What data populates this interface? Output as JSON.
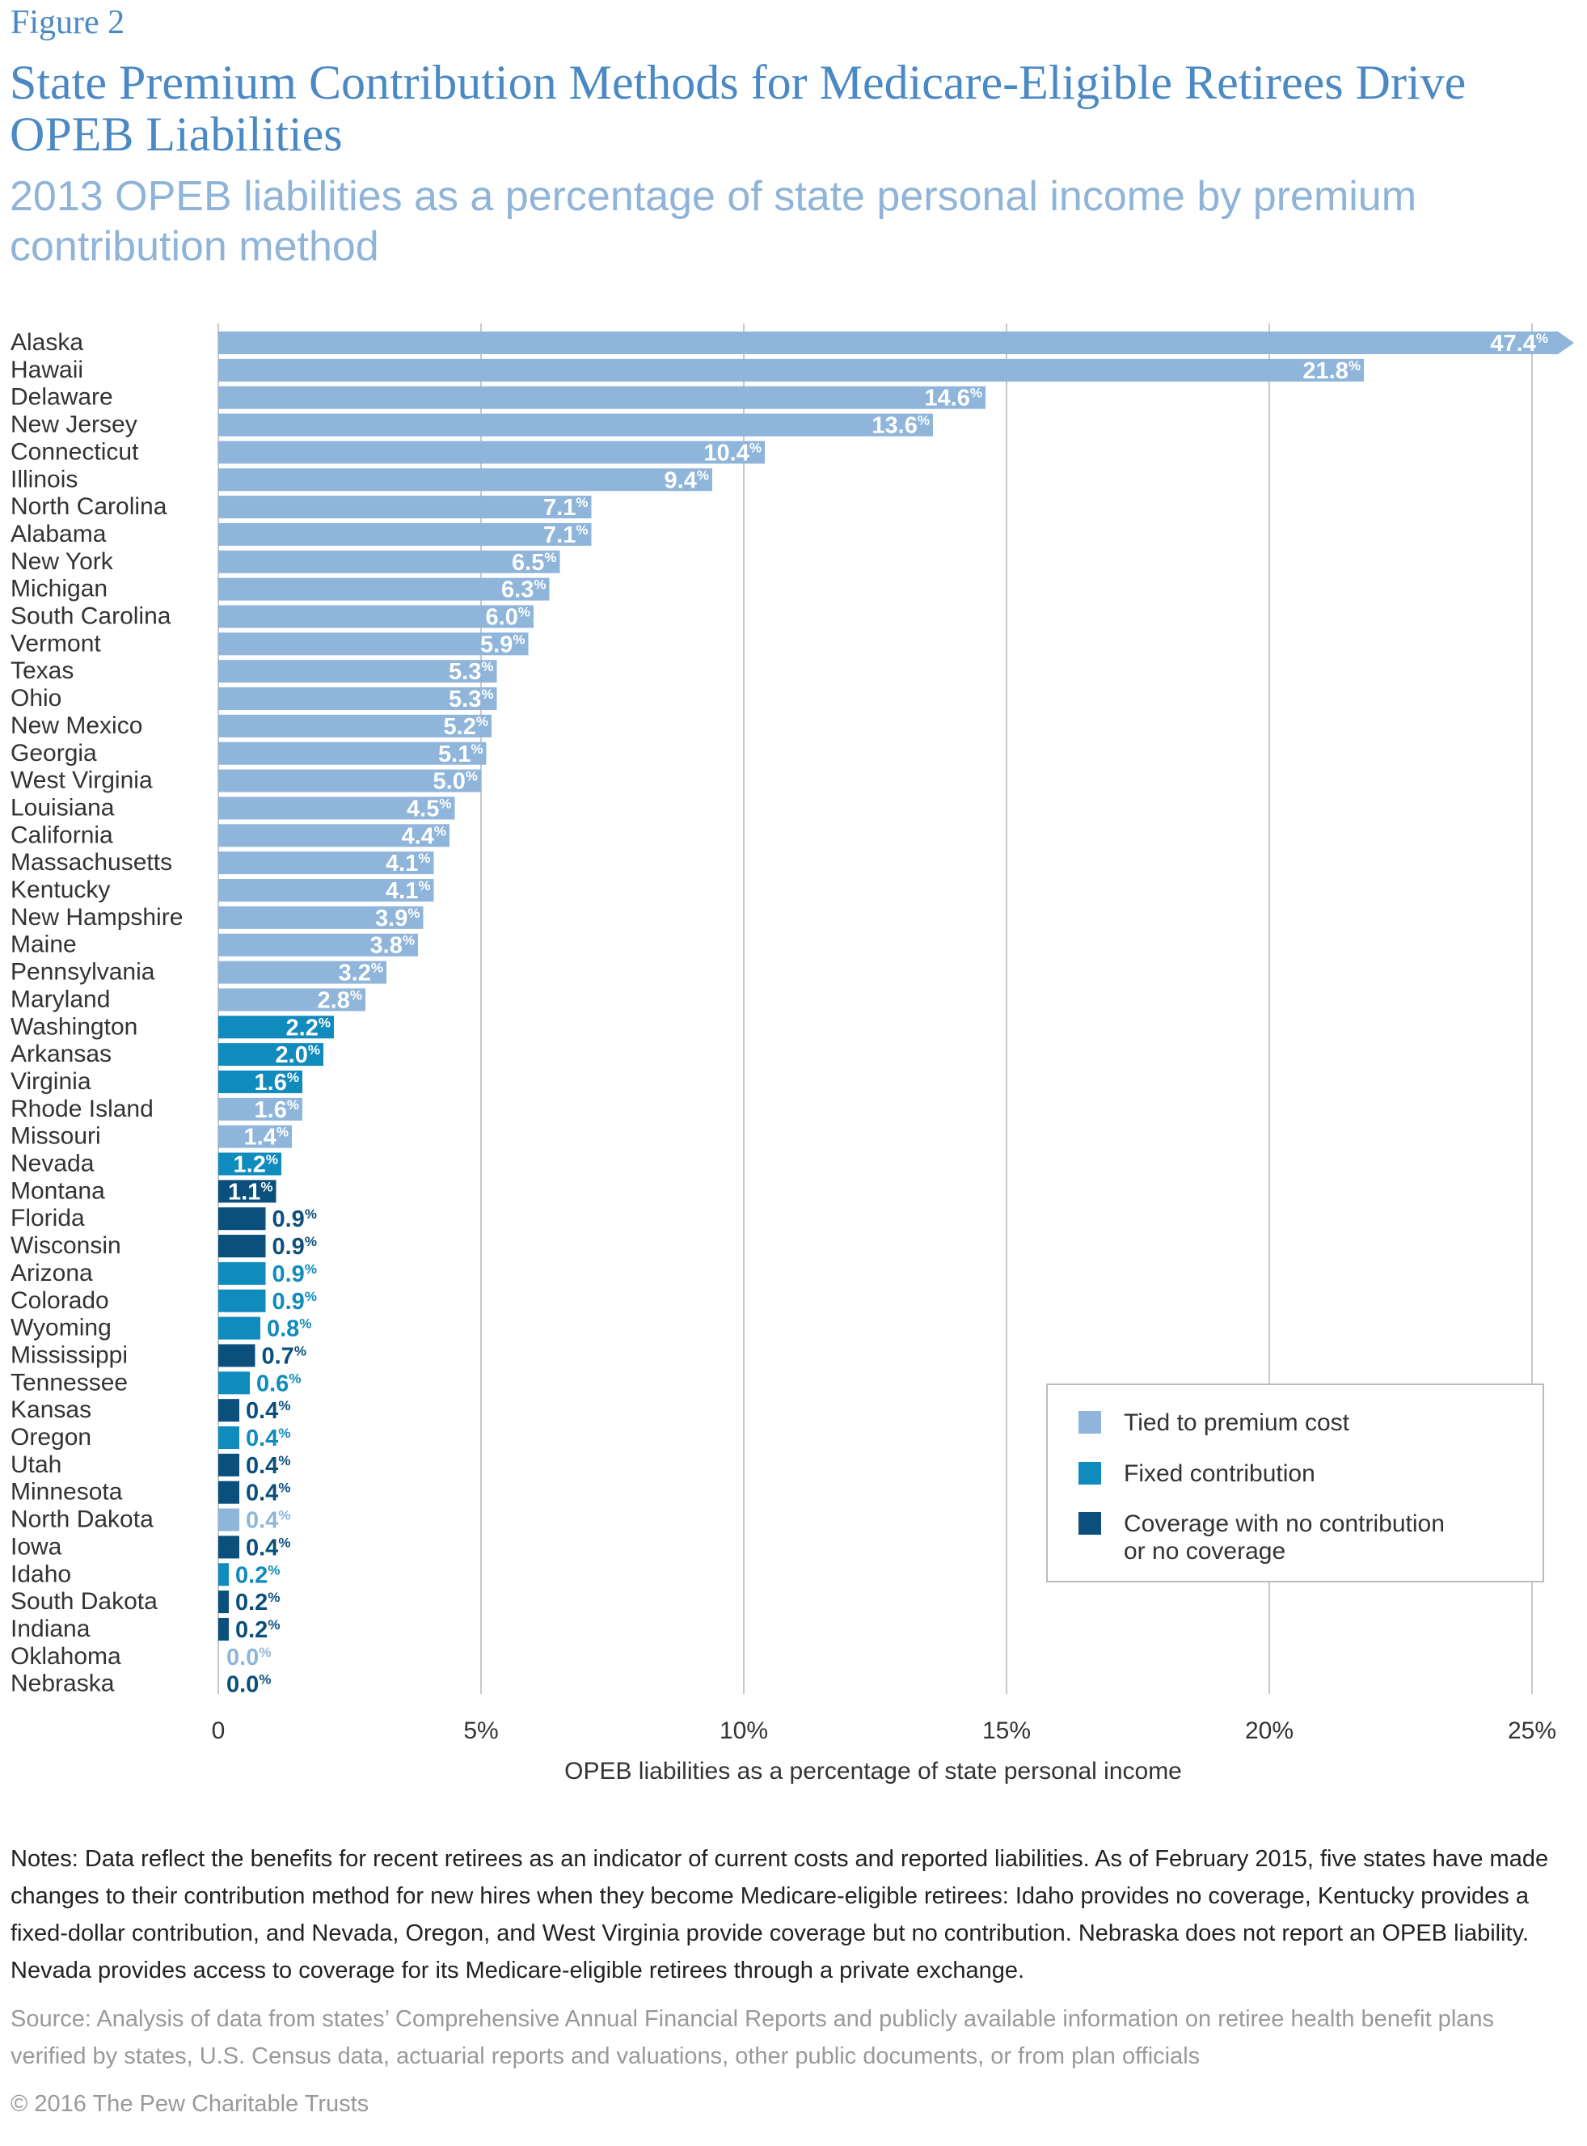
{
  "header": {
    "figure_label": "Figure 2",
    "title": "State Premium Contribution Methods for Medicare-Eligible Retirees Drive OPEB Liabilities",
    "subtitle": "2013 OPEB liabilities as a percentage of state personal income by premium contribution method"
  },
  "colors": {
    "tied": "#8fb5da",
    "fixed": "#0f8bbd",
    "none": "#0b4f7c",
    "grid": "#c8c8c8",
    "label_text": "#333333",
    "value_inside": "#ffffff"
  },
  "legend": {
    "items": [
      {
        "key": "tied",
        "label": "Tied to premium cost"
      },
      {
        "key": "fixed",
        "label": "Fixed contribution"
      },
      {
        "key": "none",
        "label": "Coverage with no contribution",
        "label2": "or no coverage"
      }
    ]
  },
  "chart_data": {
    "type": "bar",
    "orientation": "horizontal",
    "xlabel": "OPEB liabilities as a percentage of state personal income",
    "xlim": [
      0,
      25
    ],
    "x_ticks": [
      0,
      5,
      10,
      15,
      20,
      25
    ],
    "x_tick_labels": [
      "0",
      "5%",
      "10%",
      "15%",
      "20%",
      "25%"
    ],
    "grid": true,
    "value_suffix": "%",
    "truncated_bar_note": "Alaska bar exceeds axis (arrow)",
    "legend_position": "bottom-right",
    "categories": [
      "Alaska",
      "Hawaii",
      "Delaware",
      "New Jersey",
      "Connecticut",
      "Illinois",
      "North Carolina",
      "Alabama",
      "New York",
      "Michigan",
      "South Carolina",
      "Vermont",
      "Texas",
      "Ohio",
      "New Mexico",
      "Georgia",
      "West Virginia",
      "Louisiana",
      "California",
      "Massachusetts",
      "Kentucky",
      "New Hampshire",
      "Maine",
      "Pennsylvania",
      "Maryland",
      "Washington",
      "Arkansas",
      "Virginia",
      "Rhode Island",
      "Missouri",
      "Nevada",
      "Montana",
      "Florida",
      "Wisconsin",
      "Arizona",
      "Colorado",
      "Wyoming",
      "Mississippi",
      "Tennessee",
      "Kansas",
      "Oregon",
      "Utah",
      "Minnesota",
      "North Dakota",
      "Iowa",
      "Idaho",
      "South Dakota",
      "Indiana",
      "Oklahoma",
      "Nebraska"
    ],
    "values": [
      47.4,
      21.8,
      14.6,
      13.6,
      10.4,
      9.4,
      7.1,
      7.1,
      6.5,
      6.3,
      6.0,
      5.9,
      5.3,
      5.3,
      5.2,
      5.1,
      5.0,
      4.5,
      4.4,
      4.1,
      4.1,
      3.9,
      3.8,
      3.2,
      2.8,
      2.2,
      2.0,
      1.6,
      1.6,
      1.4,
      1.2,
      1.1,
      0.9,
      0.9,
      0.9,
      0.9,
      0.8,
      0.7,
      0.6,
      0.4,
      0.4,
      0.4,
      0.4,
      0.4,
      0.4,
      0.2,
      0.2,
      0.2,
      0.0,
      0.0
    ],
    "value_labels": [
      "47.4",
      "21.8",
      "14.6",
      "13.6",
      "10.4",
      "9.4",
      "7.1",
      "7.1",
      "6.5",
      "6.3",
      "6.0",
      "5.9",
      "5.3",
      "5.3",
      "5.2",
      "5.1",
      "5.0",
      "4.5",
      "4.4",
      "4.1",
      "4.1",
      "3.9",
      "3.8",
      "3.2",
      "2.8",
      "2.2",
      "2.0",
      "1.6",
      "1.6",
      "1.4",
      "1.2",
      "1.1",
      "0.9",
      "0.9",
      "0.9",
      "0.9",
      "0.8",
      "0.7",
      "0.6",
      "0.4",
      "0.4",
      "0.4",
      "0.4",
      "0.4",
      "0.4",
      "0.2",
      "0.2",
      "0.2",
      "0.0",
      "0.0"
    ],
    "method": [
      "tied",
      "tied",
      "tied",
      "tied",
      "tied",
      "tied",
      "tied",
      "tied",
      "tied",
      "tied",
      "tied",
      "tied",
      "tied",
      "tied",
      "tied",
      "tied",
      "tied",
      "tied",
      "tied",
      "tied",
      "tied",
      "tied",
      "tied",
      "tied",
      "tied",
      "fixed",
      "fixed",
      "fixed",
      "tied",
      "tied",
      "fixed",
      "none",
      "none",
      "none",
      "fixed",
      "fixed",
      "fixed",
      "none",
      "fixed",
      "none",
      "fixed",
      "none",
      "none",
      "tied",
      "none",
      "fixed",
      "none",
      "none",
      "tied",
      "none"
    ]
  },
  "footer": {
    "notes": "Notes: Data reflect the benefits for recent retirees as an indicator of current costs and reported liabilities. As of February 2015, five states have made changes to their contribution method for new hires when they become Medicare-eligible retirees: Idaho provides no coverage, Kentucky provides a fixed-dollar contribution, and Nevada, Oregon, and West Virginia provide coverage but no contribution. Nebraska does not report an OPEB liability. Nevada provides access to coverage for its Medicare-eligible retirees through a private exchange.",
    "source": "Source: Analysis of data from states’ Comprehensive Annual Financial Reports and publicly available information on retiree health benefit plans verified by states, U.S. Census data, actuarial reports and valuations, other public documents, or from plan officials",
    "copyright": "© 2016 The Pew Charitable Trusts"
  }
}
